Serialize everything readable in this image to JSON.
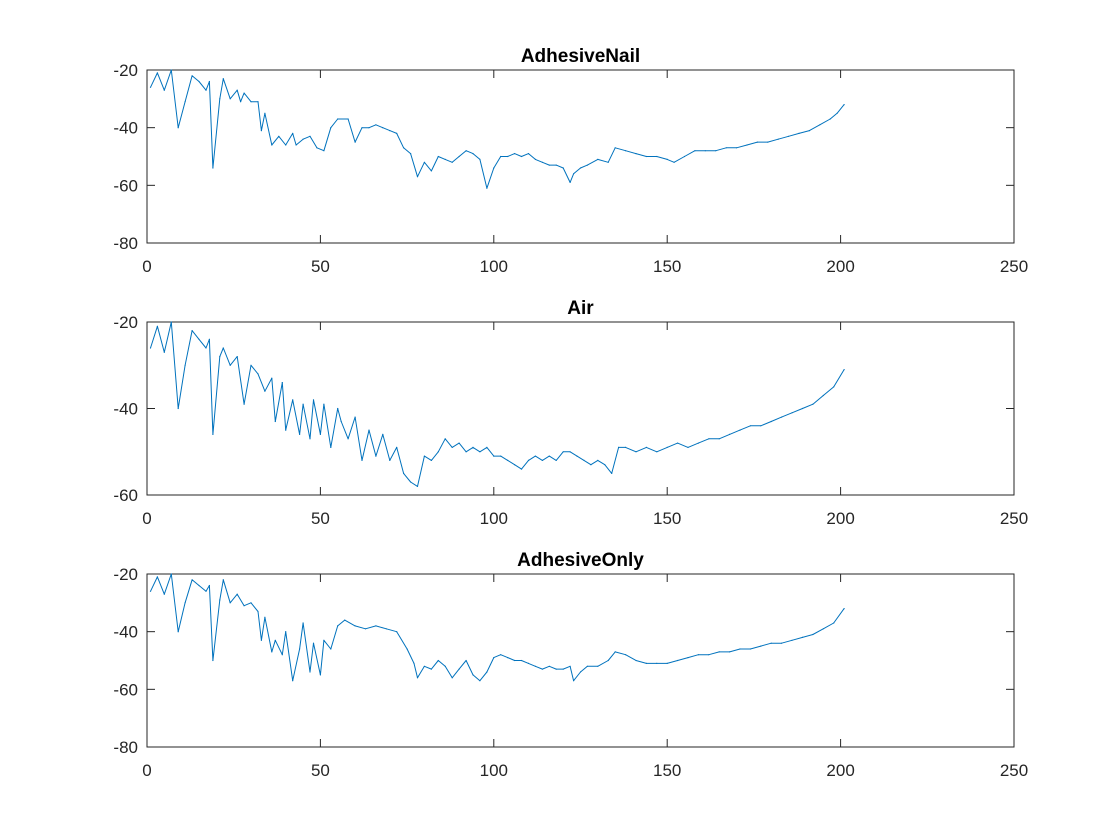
{
  "chart_data": [
    {
      "type": "line",
      "title": "AdhesiveNail",
      "xlim": [
        0,
        250
      ],
      "ylim": [
        -80,
        -20
      ],
      "xticks": [
        0,
        50,
        100,
        150,
        200,
        250
      ],
      "yticks": [
        -20,
        -40,
        -60,
        -80
      ],
      "grid": false,
      "color": "#0072bd",
      "series": [
        {
          "x": [
            1,
            3,
            5,
            7,
            9,
            11,
            13,
            15,
            17,
            18,
            19,
            21,
            22,
            24,
            26,
            27,
            28,
            30,
            32,
            33,
            34,
            36,
            38,
            40,
            42,
            43,
            45,
            47,
            49,
            51,
            53,
            55,
            58,
            60,
            62,
            64,
            66,
            68,
            70,
            72,
            74,
            76,
            78,
            80,
            82,
            84,
            86,
            88,
            90,
            92,
            94,
            96,
            98,
            100,
            102,
            104,
            106,
            108,
            110,
            112,
            114,
            116,
            118,
            120,
            122,
            123,
            125,
            127,
            130,
            133,
            135,
            138,
            141,
            144,
            147,
            150,
            152,
            155,
            158,
            161,
            164,
            167,
            170,
            173,
            176,
            179,
            182,
            185,
            188,
            191,
            194,
            197,
            199,
            201
          ],
          "y": [
            -26,
            -21,
            -27,
            -20,
            -40,
            -31,
            -22,
            -24,
            -27,
            -24,
            -54,
            -30,
            -23,
            -30,
            -27,
            -31,
            -28,
            -31,
            -31,
            -41,
            -35,
            -46,
            -43,
            -46,
            -42,
            -46,
            -44,
            -43,
            -47,
            -48,
            -40,
            -37,
            -37,
            -45,
            -40,
            -40,
            -39,
            -40,
            -41,
            -42,
            -47,
            -49,
            -57,
            -52,
            -55,
            -50,
            -51,
            -52,
            -50,
            -48,
            -49,
            -51,
            -61,
            -54,
            -50,
            -50,
            -49,
            -50,
            -49,
            -51,
            -52,
            -53,
            -53,
            -54,
            -59,
            -56,
            -54,
            -53,
            -51,
            -52,
            -47,
            -48,
            -49,
            -50,
            -50,
            -51,
            -52,
            -50,
            -48,
            -48,
            -48,
            -47,
            -47,
            -46,
            -45,
            -45,
            -44,
            -43,
            -42,
            -41,
            -39,
            -37,
            -35,
            -32
          ]
        }
      ]
    },
    {
      "type": "line",
      "title": "Air",
      "xlim": [
        0,
        250
      ],
      "ylim": [
        -60,
        -20
      ],
      "xticks": [
        0,
        50,
        100,
        150,
        200,
        250
      ],
      "yticks": [
        -20,
        -40,
        -60
      ],
      "grid": false,
      "color": "#0072bd",
      "series": [
        {
          "x": [
            1,
            3,
            5,
            7,
            9,
            11,
            13,
            15,
            17,
            18,
            19,
            21,
            22,
            24,
            26,
            28,
            30,
            32,
            34,
            36,
            37,
            39,
            40,
            42,
            44,
            45,
            47,
            48,
            50,
            51,
            53,
            55,
            56,
            58,
            60,
            62,
            64,
            66,
            68,
            70,
            72,
            74,
            76,
            78,
            80,
            82,
            84,
            86,
            88,
            90,
            92,
            94,
            96,
            98,
            100,
            102,
            104,
            106,
            108,
            110,
            112,
            114,
            116,
            118,
            120,
            122,
            124,
            126,
            128,
            130,
            132,
            134,
            136,
            138,
            141,
            144,
            147,
            150,
            153,
            156,
            159,
            162,
            165,
            168,
            171,
            174,
            177,
            180,
            183,
            186,
            189,
            192,
            195,
            198,
            201
          ],
          "y": [
            -26,
            -21,
            -27,
            -20,
            -40,
            -30,
            -22,
            -24,
            -26,
            -24,
            -46,
            -28,
            -26,
            -30,
            -28,
            -39,
            -30,
            -32,
            -36,
            -33,
            -43,
            -34,
            -45,
            -38,
            -46,
            -39,
            -47,
            -38,
            -46,
            -39,
            -49,
            -40,
            -43,
            -47,
            -42,
            -52,
            -45,
            -51,
            -46,
            -52,
            -49,
            -55,
            -57,
            -58,
            -51,
            -52,
            -50,
            -47,
            -49,
            -48,
            -50,
            -49,
            -50,
            -49,
            -51,
            -51,
            -52,
            -53,
            -54,
            -52,
            -51,
            -52,
            -51,
            -52,
            -50,
            -50,
            -51,
            -52,
            -53,
            -52,
            -53,
            -55,
            -49,
            -49,
            -50,
            -49,
            -50,
            -49,
            -48,
            -49,
            -48,
            -47,
            -47,
            -46,
            -45,
            -44,
            -44,
            -43,
            -42,
            -41,
            -40,
            -39,
            -37,
            -35,
            -31
          ]
        }
      ]
    },
    {
      "type": "line",
      "title": "AdhesiveOnly",
      "xlim": [
        0,
        250
      ],
      "ylim": [
        -80,
        -20
      ],
      "xticks": [
        0,
        50,
        100,
        150,
        200,
        250
      ],
      "yticks": [
        -20,
        -40,
        -60,
        -80
      ],
      "grid": false,
      "color": "#0072bd",
      "series": [
        {
          "x": [
            1,
            3,
            5,
            7,
            9,
            11,
            13,
            15,
            17,
            18,
            19,
            21,
            22,
            24,
            26,
            28,
            30,
            32,
            33,
            34,
            36,
            37,
            39,
            40,
            42,
            44,
            45,
            47,
            48,
            50,
            51,
            53,
            55,
            57,
            60,
            63,
            66,
            69,
            72,
            75,
            77,
            78,
            80,
            82,
            84,
            86,
            88,
            90,
            92,
            94,
            96,
            98,
            100,
            102,
            104,
            106,
            108,
            110,
            112,
            114,
            116,
            118,
            120,
            122,
            123,
            125,
            127,
            130,
            133,
            135,
            138,
            141,
            144,
            147,
            150,
            153,
            156,
            159,
            162,
            165,
            168,
            171,
            174,
            177,
            180,
            183,
            186,
            189,
            192,
            195,
            198,
            201
          ],
          "y": [
            -26,
            -21,
            -27,
            -20,
            -40,
            -30,
            -22,
            -24,
            -26,
            -24,
            -50,
            -29,
            -22,
            -30,
            -27,
            -31,
            -30,
            -33,
            -43,
            -35,
            -47,
            -43,
            -48,
            -40,
            -57,
            -46,
            -37,
            -54,
            -44,
            -55,
            -43,
            -46,
            -38,
            -36,
            -38,
            -39,
            -38,
            -39,
            -40,
            -46,
            -51,
            -56,
            -52,
            -53,
            -50,
            -52,
            -56,
            -53,
            -50,
            -55,
            -57,
            -54,
            -49,
            -48,
            -49,
            -50,
            -50,
            -51,
            -52,
            -53,
            -52,
            -53,
            -53,
            -52,
            -57,
            -54,
            -52,
            -52,
            -50,
            -47,
            -48,
            -50,
            -51,
            -51,
            -51,
            -50,
            -49,
            -48,
            -48,
            -47,
            -47,
            -46,
            -46,
            -45,
            -44,
            -44,
            -43,
            -42,
            -41,
            -39,
            -37,
            -32
          ]
        }
      ]
    }
  ]
}
